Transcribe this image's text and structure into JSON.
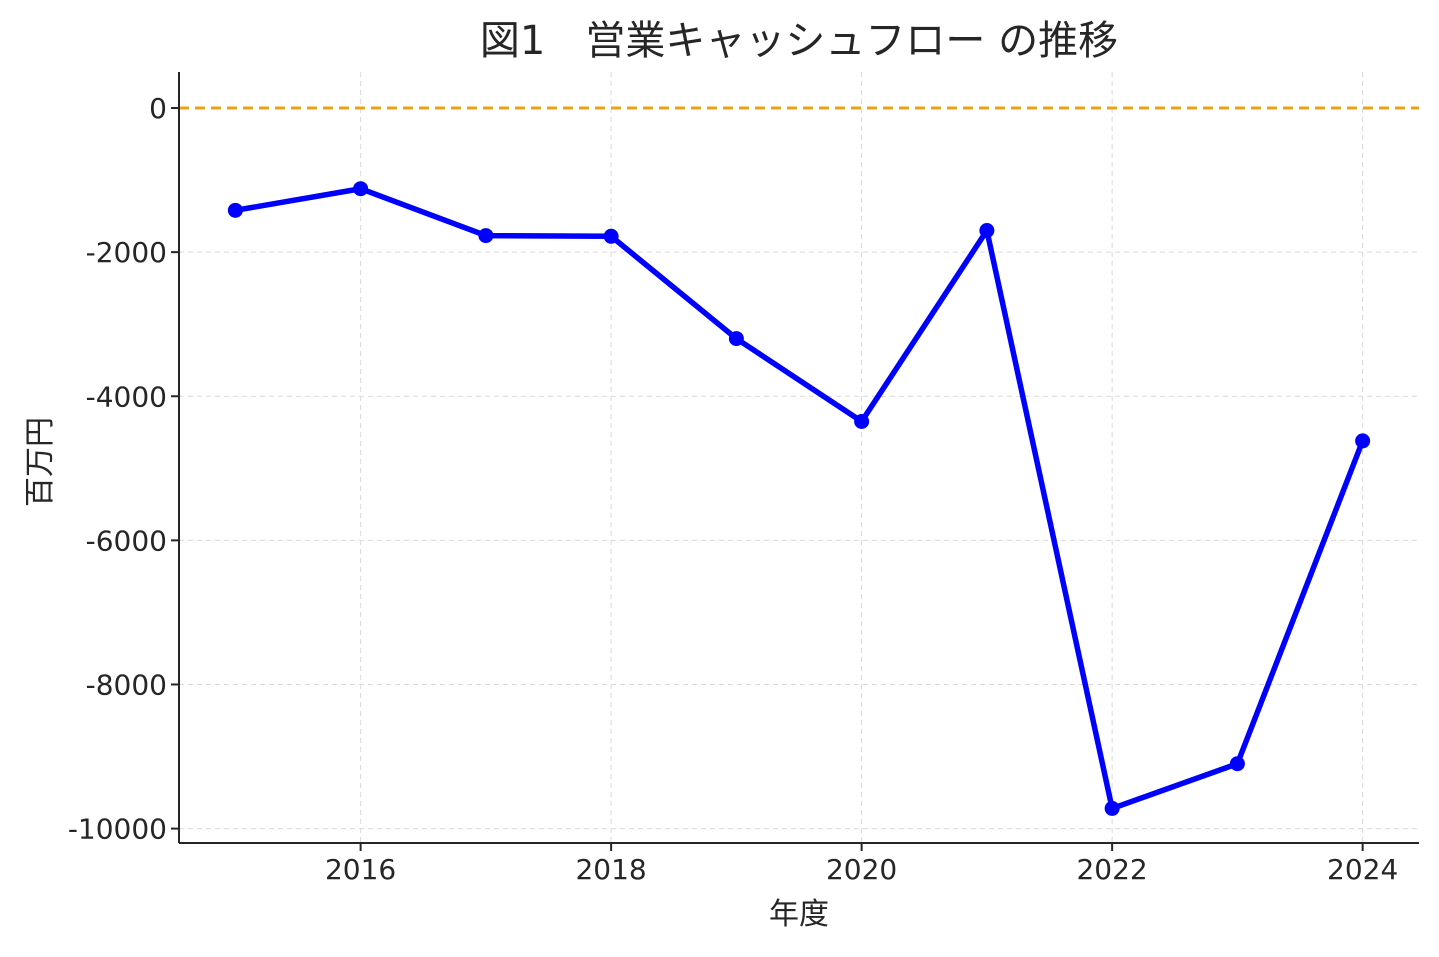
{
  "chart_data": {
    "type": "line",
    "title": "図1　営業キャッシュフロー の推移",
    "xlabel": "年度",
    "ylabel": "百万円",
    "x": [
      2015,
      2016,
      2017,
      2018,
      2019,
      2020,
      2021,
      2022,
      2023,
      2024
    ],
    "series": [
      {
        "values": [
          -1420,
          -1120,
          -1770,
          -1780,
          -3200,
          -4350,
          -1700,
          -9720,
          -9100,
          -4620
        ],
        "color": "#0000ff",
        "marker": "circle"
      }
    ],
    "xlim": [
      2014.55,
      2024.45
    ],
    "ylim": [
      -10200,
      500
    ],
    "xticks": [
      2016,
      2018,
      2020,
      2022,
      2024
    ],
    "yticks": [
      0,
      -2000,
      -4000,
      -6000,
      -8000,
      -10000
    ],
    "reference_line": {
      "y": 0,
      "color": "#e8a317",
      "style": "dashed"
    },
    "grid": true
  }
}
